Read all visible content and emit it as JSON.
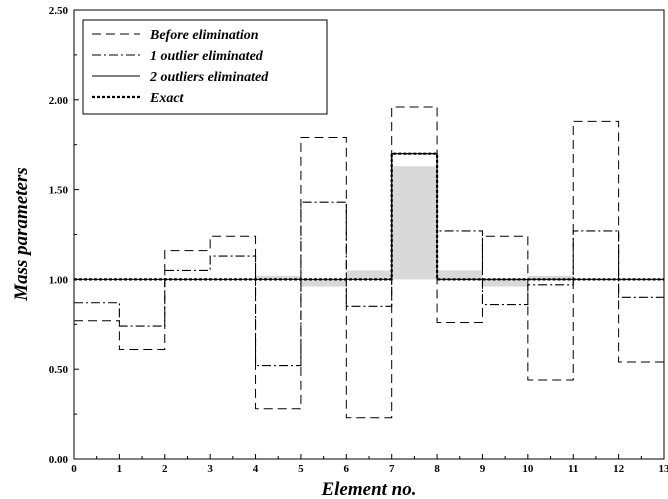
{
  "chart_data": {
    "type": "line",
    "step": true,
    "xlabel": "Element no.",
    "ylabel": "Mass parameters",
    "xlim": [
      0,
      13
    ],
    "ylim": [
      0,
      2.5
    ],
    "xticks": [
      0,
      1,
      2,
      3,
      4,
      5,
      6,
      7,
      8,
      9,
      10,
      11,
      12,
      13
    ],
    "xtick_labels": [
      "0",
      "1",
      "2",
      "3",
      "4",
      "5",
      "6",
      "7",
      "8",
      "9",
      "10",
      "11",
      "12",
      "13"
    ],
    "yticks": [
      0,
      0.5,
      1.0,
      1.5,
      2.0,
      2.5
    ],
    "ytick_labels": [
      "0.00",
      "0.50",
      "1.00",
      "1.50",
      "2.00",
      "2.50"
    ],
    "legend_position": "top-left",
    "series": [
      {
        "name": "Before elimination",
        "style": "dashed",
        "values": [
          0.77,
          0.61,
          1.16,
          1.24,
          0.28,
          1.79,
          0.23,
          1.96,
          0.76,
          1.24,
          0.44,
          1.88,
          0.54
        ]
      },
      {
        "name": "1 outlier eliminated",
        "style": "dashdot",
        "values": [
          0.87,
          0.74,
          1.05,
          1.13,
          0.52,
          1.43,
          0.85,
          1.7,
          1.27,
          0.86,
          0.97,
          1.27,
          0.9
        ]
      },
      {
        "name": "2 outliers eliminated",
        "style": "solid",
        "values": [
          1.0,
          1.0,
          1.0,
          1.0,
          1.0,
          1.0,
          1.0,
          1.7,
          1.0,
          1.0,
          1.0,
          1.0,
          1.0
        ]
      },
      {
        "name": "Exact",
        "style": "dotted",
        "values": [
          1.0,
          1.0,
          1.0,
          1.0,
          1.0,
          1.0,
          1.0,
          1.7,
          1.0,
          1.0,
          1.0,
          1.0,
          1.0
        ]
      }
    ],
    "shaded_bars": {
      "color": "#d9d9d9",
      "values": [
        1.0,
        1.0,
        1.0,
        1.0,
        1.02,
        0.96,
        1.05,
        1.63,
        1.05,
        0.96,
        1.02,
        1.0,
        1.0
      ]
    },
    "colors": {
      "line": "#000000",
      "shade": "#d9d9d9",
      "background": "#ffffff"
    }
  }
}
